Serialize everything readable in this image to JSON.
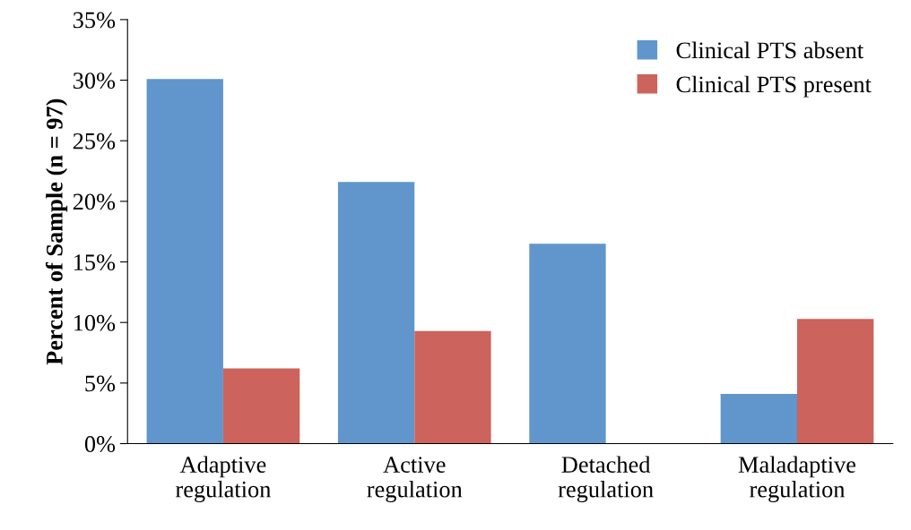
{
  "chart_data": {
    "type": "bar",
    "ylabel": "Percent of Sample (n = 97)",
    "categories": [
      "Adaptive\nregulation",
      "Active\nregulation",
      "Detached\nregulation",
      "Maladaptive\nregulation"
    ],
    "series": [
      {
        "name": "Clinical PTS absent",
        "color": "#6096cb",
        "values": [
          30.1,
          21.6,
          16.5,
          4.1
        ]
      },
      {
        "name": "Clinical PTS present",
        "color": "#cc635c",
        "values": [
          6.2,
          9.3,
          0,
          10.3
        ]
      }
    ],
    "ylim": [
      0,
      35
    ],
    "yticks": [
      {
        "value": 0,
        "label": "0%"
      },
      {
        "value": 5,
        "label": "5%"
      },
      {
        "value": 10,
        "label": "10%"
      },
      {
        "value": 15,
        "label": "15%"
      },
      {
        "value": 20,
        "label": "20%"
      },
      {
        "value": 25,
        "label": "25%"
      },
      {
        "value": 30,
        "label": "30%"
      },
      {
        "value": 35,
        "label": "35%"
      }
    ],
    "grid": false,
    "legend": "top right"
  }
}
